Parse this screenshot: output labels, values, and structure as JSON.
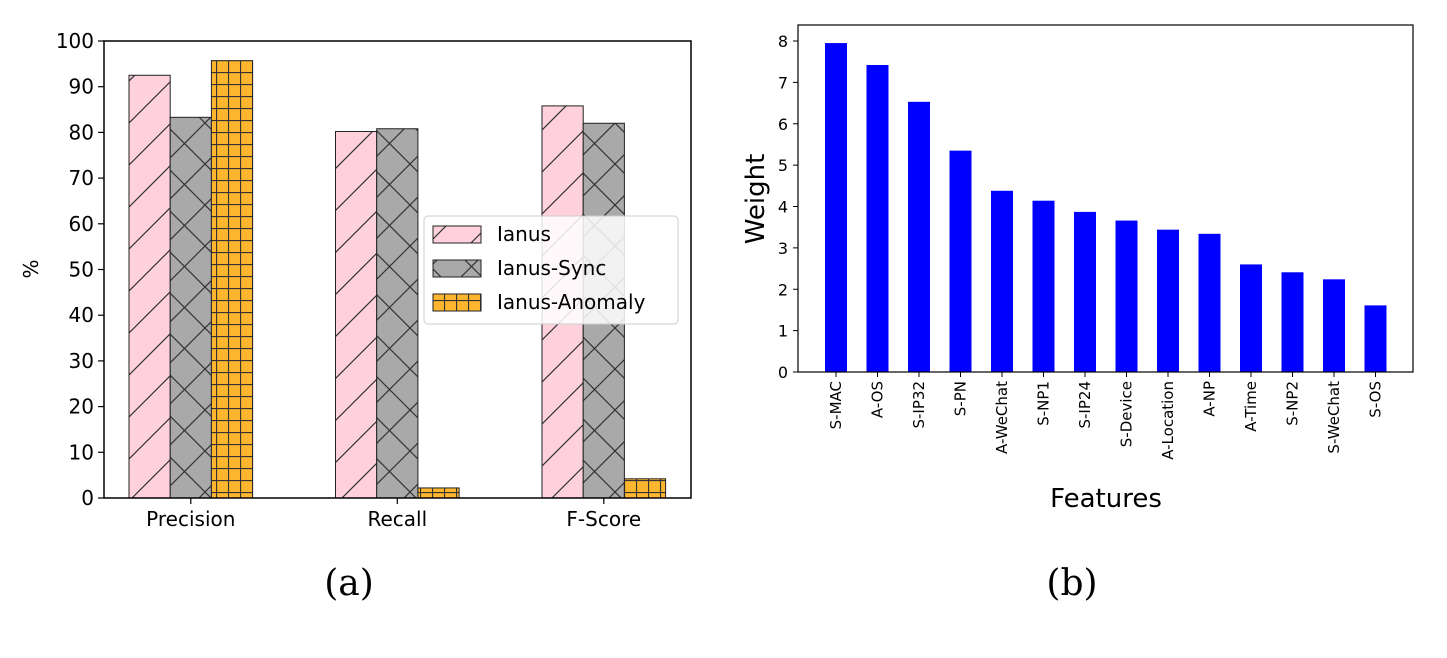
{
  "panels": {
    "a_label": "(a)",
    "b_label": "(b)"
  },
  "chart_data": [
    {
      "type": "bar",
      "id": "panel-a",
      "title": "",
      "xlabel": "",
      "ylabel": "%",
      "ylim": [
        0,
        100
      ],
      "yticks": [
        0,
        10,
        20,
        30,
        40,
        50,
        60,
        70,
        80,
        90,
        100
      ],
      "categories": [
        "Precision",
        "Recall",
        "F-Score"
      ],
      "legend_position": "center-right",
      "series": [
        {
          "name": "Ianus",
          "values": [
            92.5,
            80.2,
            85.8
          ],
          "color": "#ffd1dc",
          "hatch": "diagonal"
        },
        {
          "name": "Ianus-Sync",
          "values": [
            83.3,
            80.8,
            82.0
          ],
          "color": "#a9a9a9",
          "hatch": "cross"
        },
        {
          "name": "Ianus-Anomaly",
          "values": [
            95.7,
            2.2,
            4.2
          ],
          "color": "#ffb52e",
          "hatch": "grid"
        }
      ]
    },
    {
      "type": "bar",
      "id": "panel-b",
      "title": "",
      "xlabel": "Features",
      "ylabel": "Weight",
      "ylim": [
        0,
        8.0
      ],
      "yticks": [
        0,
        1,
        2,
        3,
        4,
        5,
        6,
        7,
        8
      ],
      "bar_color": "#0000ff",
      "categories": [
        "S-MAC",
        "A-OS",
        "S-IP32",
        "S-PN",
        "A-WeChat",
        "S-NP1",
        "S-IP24",
        "S-Device",
        "A-Location",
        "A-NP",
        "A-Time",
        "S-NP2",
        "S-WeChat",
        "S-OS"
      ],
      "values": [
        7.95,
        7.42,
        6.53,
        5.35,
        4.38,
        4.14,
        3.87,
        3.66,
        3.44,
        3.34,
        2.6,
        2.41,
        2.24,
        1.61
      ]
    }
  ]
}
